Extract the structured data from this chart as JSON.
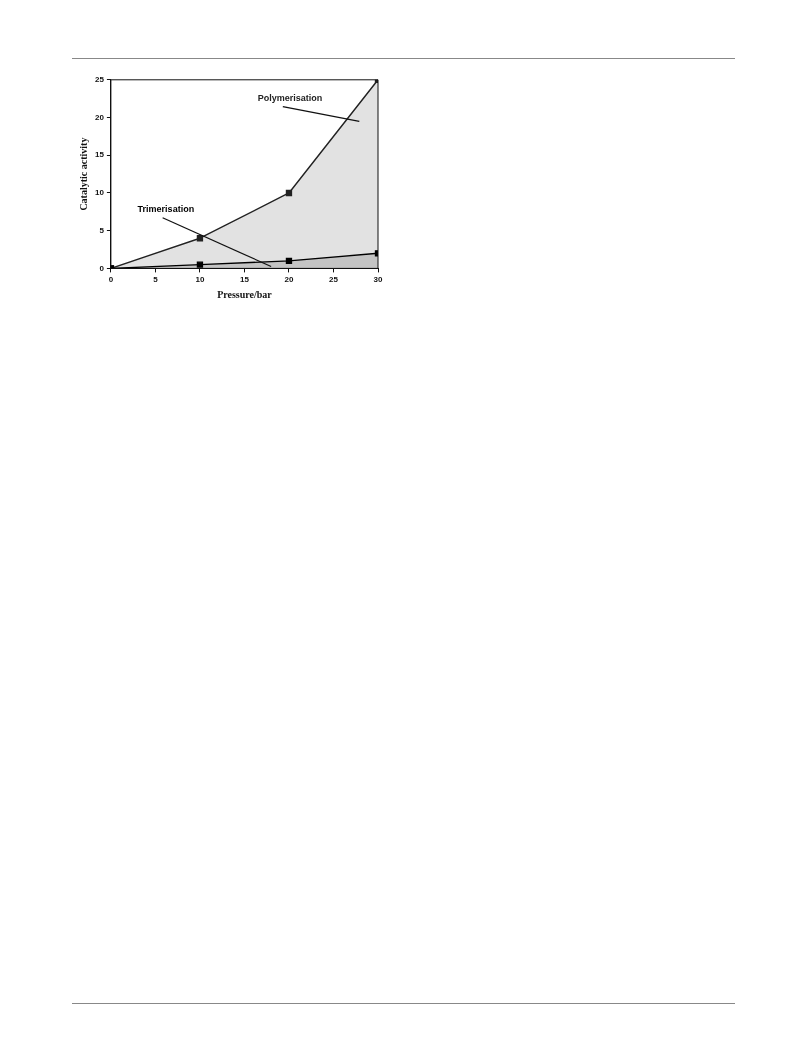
{
  "chart_data": {
    "type": "area",
    "xlabel": "Pressure/bar",
    "ylabel": "Catalytic activity",
    "x": [
      0,
      10,
      20,
      30
    ],
    "series": [
      {
        "name": "Polymerisation",
        "color": "#222222",
        "values": [
          0,
          4,
          10,
          25
        ]
      },
      {
        "name": "Trimerisation",
        "color": "#000000",
        "values": [
          0,
          0.5,
          1,
          2
        ]
      }
    ],
    "xlim": [
      0,
      30
    ],
    "xticks": [
      0,
      5,
      10,
      15,
      20,
      25,
      30
    ],
    "ylim": [
      0,
      25
    ],
    "yticks": [
      0,
      5,
      10,
      15,
      20,
      25
    ],
    "grid": false,
    "legend": false,
    "marker": "square",
    "line_style": "solid"
  }
}
